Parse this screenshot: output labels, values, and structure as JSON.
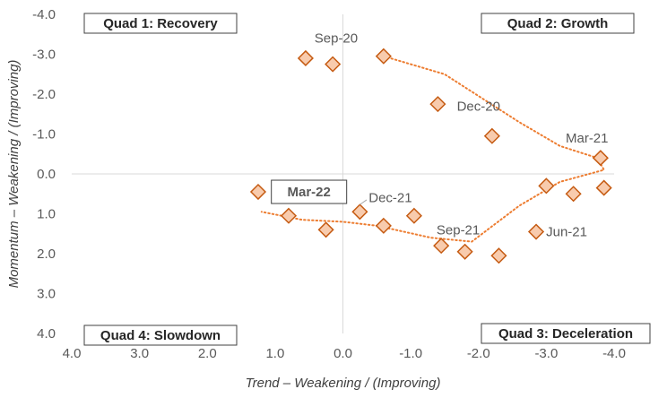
{
  "chart_data": {
    "type": "scatter",
    "xlabel": "Trend – Weakening / (Improving)",
    "ylabel": "Momentum – Weakening / (Improving)",
    "xlim": [
      4.0,
      -4.0
    ],
    "ylim": [
      4.0,
      -4.0
    ],
    "x_reversed": true,
    "y_reversed": true,
    "x_ticks": [
      4.0,
      3.0,
      2.0,
      1.0,
      0.0,
      -1.0,
      -2.0,
      -3.0,
      -4.0
    ],
    "x_tick_labels": [
      "4.0",
      "3.0",
      "2.0",
      "1.0",
      "0.0",
      "-1.0",
      "-2.0",
      "-3.0",
      "-4.0"
    ],
    "y_ticks": [
      -4.0,
      -3.0,
      -2.0,
      -1.0,
      0.0,
      1.0,
      2.0,
      3.0,
      4.0
    ],
    "y_tick_labels": [
      "-4.0",
      "-3.0",
      "-2.0",
      "-1.0",
      "0.0",
      "1.0",
      "2.0",
      "3.0",
      "4.0"
    ],
    "grid": false,
    "quadrants": [
      "Quad 1:  Recovery",
      "Quad 2:  Growth",
      "Quad 3:  Deceleration",
      "Quad 4:  Slowdown"
    ],
    "series": [
      {
        "marker": "diamond",
        "color": "#F8CBAD",
        "edge_color": "#C55A11",
        "points": [
          {
            "x": 0.55,
            "y": -2.9
          },
          {
            "x": 0.15,
            "y": -2.75
          },
          {
            "x": -0.6,
            "y": -2.95
          },
          {
            "x": -1.4,
            "y": -1.75
          },
          {
            "x": -2.2,
            "y": -0.95
          },
          {
            "x": -3.8,
            "y": -0.4
          },
          {
            "x": -3.0,
            "y": 0.3
          },
          {
            "x": -3.4,
            "y": 0.5
          },
          {
            "x": -3.85,
            "y": 0.35
          },
          {
            "x": -2.85,
            "y": 1.45
          },
          {
            "x": -2.3,
            "y": 2.05
          },
          {
            "x": -1.8,
            "y": 1.95
          },
          {
            "x": -1.45,
            "y": 1.8
          },
          {
            "x": -1.05,
            "y": 1.05
          },
          {
            "x": -0.6,
            "y": 1.3
          },
          {
            "x": -0.25,
            "y": 0.95
          },
          {
            "x": 0.25,
            "y": 1.4
          },
          {
            "x": 0.8,
            "y": 1.05
          },
          {
            "x": 1.25,
            "y": 0.45
          }
        ]
      }
    ],
    "trendline": {
      "style": "dotted",
      "color": "#ED7D31",
      "points": [
        {
          "x": -0.6,
          "y": -2.95
        },
        {
          "x": -1.5,
          "y": -2.5
        },
        {
          "x": -2.6,
          "y": -1.3
        },
        {
          "x": -3.2,
          "y": -0.7
        },
        {
          "x": -3.75,
          "y": -0.4
        },
        {
          "x": -3.85,
          "y": -0.1
        },
        {
          "x": -3.2,
          "y": 0.2
        },
        {
          "x": -2.6,
          "y": 0.8
        },
        {
          "x": -1.9,
          "y": 1.7
        },
        {
          "x": -1.3,
          "y": 1.6
        },
        {
          "x": -0.5,
          "y": 1.3
        },
        {
          "x": 0.0,
          "y": 1.2
        },
        {
          "x": 0.6,
          "y": 1.15
        },
        {
          "x": 1.2,
          "y": 0.95
        }
      ]
    },
    "annotations": [
      {
        "text": "Sep-20",
        "x": 0.1,
        "y": -3.4,
        "boxed": false
      },
      {
        "text": "Dec-20",
        "x": -2.0,
        "y": -1.7,
        "boxed": false
      },
      {
        "text": "Mar-21",
        "x": -3.6,
        "y": -0.9,
        "boxed": false
      },
      {
        "text": "Jun-21",
        "x": -3.3,
        "y": 1.45,
        "boxed": false
      },
      {
        "text": "Sep-21",
        "x": -1.7,
        "y": 1.4,
        "boxed": false
      },
      {
        "text": "Dec-21",
        "x": -0.7,
        "y": 0.6,
        "boxed": false
      },
      {
        "text": "Mar-22",
        "x": 0.5,
        "y": 0.45,
        "boxed": true
      }
    ]
  }
}
